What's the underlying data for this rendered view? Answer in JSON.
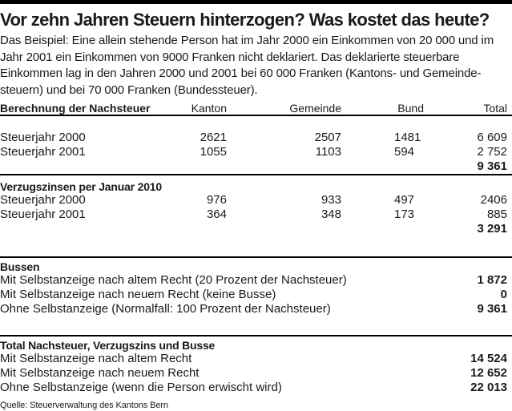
{
  "chart_data": {
    "type": "table",
    "title": "Vor zehn Jahren Steuern hinterzogen? Was kostet das heute?",
    "intro_lines": [
      "Das Beispiel: Eine allein stehende Person hat im Jahr 2000 ein Einkommen von 20 000 und im",
      "Jahr 2001 ein Einkommen von 9000 Franken nicht deklariert. Das deklarierte steuerbare",
      "Einkommen lag in den Jahren 2000 und 2001 bei 60 000 Franken (Kantons- und Gemeinde-",
      "steuern) und bei 70 000 Franken (Bundessteuer)."
    ],
    "columns": [
      "Kanton",
      "Gemeinde",
      "Bund",
      "Total"
    ],
    "sections": [
      {
        "title": "Berechnung der Nachsteuer",
        "rows": [
          {
            "label": "Steuerjahr 2000",
            "kanton": "2621",
            "gemeinde": "2507",
            "bund": "1481",
            "total": "6 609"
          },
          {
            "label": "Steuerjahr 2001",
            "kanton": "1055",
            "gemeinde": "1103",
            "bund": "594",
            "total": "2 752"
          }
        ],
        "subtotal": "9 361"
      },
      {
        "title": "Verzugszinsen per Januar 2010",
        "rows": [
          {
            "label": "Steuerjahr 2000",
            "kanton": "976",
            "gemeinde": "933",
            "bund": "497",
            "total": "2406"
          },
          {
            "label": "Steuerjahr 2001",
            "kanton": "364",
            "gemeinde": "348",
            "bund": "173",
            "total": "885"
          }
        ],
        "subtotal": "3 291"
      },
      {
        "title": "Bussen",
        "rows": [
          {
            "label": "Mit Selbstanzeige nach altem Recht (20 Prozent der Nachsteuer)",
            "value": "1 872"
          },
          {
            "label": "Mit Selbstanzeige nach neuem Recht (keine Busse)",
            "value": "0"
          },
          {
            "label": "Ohne Selbstanzeige (Normalfall: 100 Prozent der Nachsteuer)",
            "value": "9 361"
          }
        ]
      },
      {
        "title": "Total Nachsteuer, Verzugszins und Busse",
        "rows": [
          {
            "label": "Mit Selbstanzeige nach altem Recht",
            "value": "14 524"
          },
          {
            "label": "Mit Selbstanzeige nach neuem Recht",
            "value": "12 652"
          },
          {
            "label": "Ohne Selbstanzeige (wenn die Person erwischt wird)",
            "value": "22 013"
          }
        ]
      }
    ],
    "source": "Quelle: Steuerverwaltung des Kantons Bern"
  },
  "colors": {
    "background": "#ffffff",
    "text": "#1a1a1a",
    "rule": "#000000",
    "top_bar": "#000000"
  }
}
